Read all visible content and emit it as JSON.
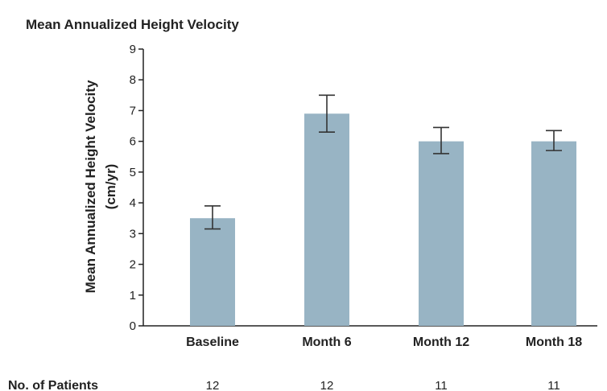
{
  "chart_data": {
    "type": "bar",
    "title": "Mean Annualized Height Velocity",
    "ylabel_line1": "Mean Annualized Height Velocity",
    "ylabel_line2": "(cm/yr)",
    "xlabel": "",
    "ylim": [
      0,
      9
    ],
    "yticks": [
      "0",
      "1",
      "2",
      "3",
      "4",
      "5",
      "6",
      "7",
      "8",
      "9"
    ],
    "categories": [
      "Baseline",
      "Month 6",
      "Month 12",
      "Month 18"
    ],
    "values": [
      3.5,
      6.9,
      6.0,
      6.0
    ],
    "error_bars": [
      {
        "low": 3.15,
        "high": 3.9
      },
      {
        "low": 6.3,
        "high": 7.5
      },
      {
        "low": 5.6,
        "high": 6.45
      },
      {
        "low": 5.7,
        "high": 6.35
      }
    ],
    "bar_color": "#98b4c4",
    "grid": false,
    "patients_label": "No. of Patients",
    "patients": [
      "12",
      "12",
      "11",
      "11"
    ]
  }
}
